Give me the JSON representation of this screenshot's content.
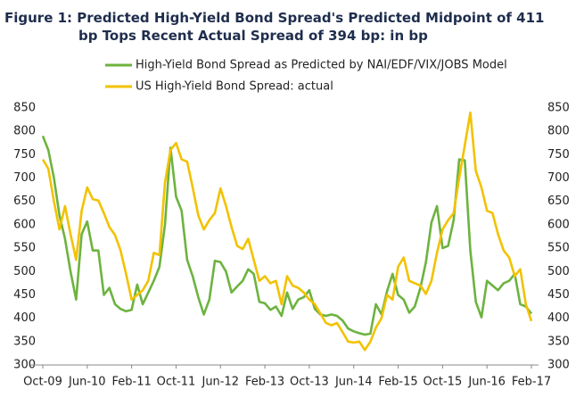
{
  "chart_data": {
    "type": "line",
    "title": "Figure 1: Predicted High-Yield Bond Spread's Predicted Midpoint of 411 bp Tops Recent Actual Spread of 394 bp: in bp",
    "categories": [
      "Oct-09",
      null,
      null,
      null,
      null,
      null,
      null,
      null,
      "Jun-10",
      null,
      null,
      null,
      null,
      null,
      null,
      null,
      "Feb-11",
      null,
      null,
      null,
      null,
      null,
      null,
      null,
      "Oct-11",
      null,
      null,
      null,
      null,
      null,
      null,
      null,
      "Jun-12",
      null,
      null,
      null,
      null,
      null,
      null,
      null,
      "Feb-13",
      null,
      null,
      null,
      null,
      null,
      null,
      null,
      "Oct-13",
      null,
      null,
      null,
      null,
      null,
      null,
      null,
      "Jun-14",
      null,
      null,
      null,
      null,
      null,
      null,
      null,
      "Feb-15",
      null,
      null,
      null,
      null,
      null,
      null,
      null,
      "Oct-15",
      null,
      null,
      null,
      null,
      null,
      null,
      null,
      "Jun-16",
      null,
      null,
      null,
      null,
      null,
      null,
      null,
      "Feb-17"
    ],
    "series": [
      {
        "name": "High-Yield Bond Spread as Predicted by NAI/EDF/VIX/JOBS Model",
        "color": "#6db33f",
        "values": [
          790,
          760,
          700,
          620,
          570,
          500,
          440,
          580,
          607,
          545,
          545,
          450,
          465,
          430,
          420,
          415,
          418,
          472,
          430,
          455,
          480,
          510,
          600,
          765,
          660,
          630,
          525,
          490,
          445,
          408,
          440,
          523,
          520,
          500,
          455,
          468,
          480,
          505,
          495,
          435,
          432,
          418,
          425,
          405,
          455,
          420,
          440,
          445,
          460,
          420,
          408,
          405,
          408,
          405,
          395,
          378,
          372,
          368,
          365,
          367,
          430,
          408,
          458,
          495,
          450,
          440,
          412,
          425,
          465,
          520,
          605,
          640,
          550,
          555,
          610,
          740,
          738,
          545,
          435,
          402,
          480,
          470,
          460,
          475,
          480,
          495,
          430,
          425,
          410
        ]
      },
      {
        "name": "US High-Yield Bond Spread: actual",
        "color": "#f2c200",
        "values": [
          740,
          720,
          650,
          590,
          640,
          580,
          525,
          630,
          680,
          655,
          652,
          625,
          595,
          578,
          545,
          495,
          440,
          450,
          460,
          480,
          540,
          535,
          690,
          760,
          775,
          740,
          735,
          680,
          620,
          590,
          610,
          625,
          678,
          640,
          595,
          555,
          548,
          570,
          525,
          480,
          490,
          475,
          480,
          430,
          490,
          470,
          465,
          455,
          440,
          430,
          410,
          390,
          385,
          390,
          370,
          350,
          348,
          350,
          332,
          350,
          380,
          400,
          450,
          440,
          510,
          530,
          480,
          475,
          470,
          452,
          480,
          540,
          590,
          610,
          625,
          700,
          770,
          840,
          715,
          680,
          630,
          625,
          580,
          545,
          530,
          490,
          505,
          430,
          394
        ]
      }
    ],
    "ylim": [
      300,
      850
    ],
    "yticks": [
      300,
      350,
      400,
      450,
      500,
      550,
      600,
      650,
      700,
      750,
      800,
      850
    ],
    "y2lim": [
      300,
      850
    ],
    "y2ticks": [
      300,
      350,
      400,
      450,
      500,
      550,
      600,
      650,
      700,
      750,
      800,
      850
    ],
    "legend": "top-left"
  }
}
